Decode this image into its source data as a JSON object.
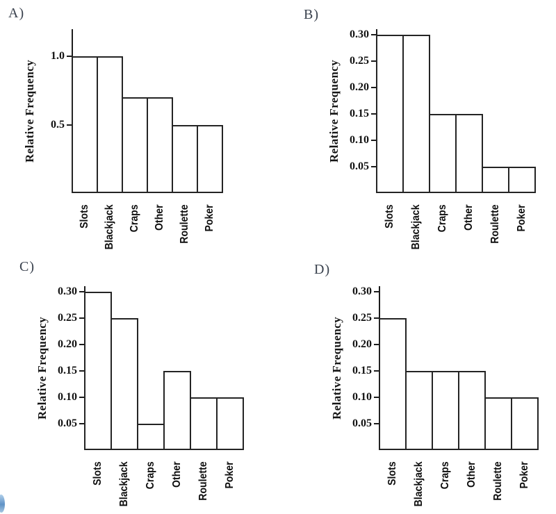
{
  "page": {
    "background": "#ffffff",
    "description_colors": {
      "ink": "#1c1c1c",
      "panel_label": "#39414d",
      "bar_fill": "#ffffff",
      "artifact_blue": "#4e86c0"
    }
  },
  "chart_data": [
    {
      "id": "A",
      "option_label": "A)",
      "type": "bar",
      "title": "",
      "xlabel": "",
      "ylabel": "Relative Frequency",
      "categories": [
        "Slots",
        "Blackjack",
        "Craps",
        "Other",
        "Roulette",
        "Poker"
      ],
      "values": [
        1.0,
        1.0,
        0.7,
        0.7,
        0.5,
        0.5
      ],
      "yticks": [
        {
          "value": 0.5,
          "label": "0.5"
        },
        {
          "value": 1.0,
          "label": "1.0"
        }
      ],
      "ylim": [
        0,
        1.2
      ],
      "grid": false,
      "legend": "none"
    },
    {
      "id": "B",
      "option_label": "B)",
      "type": "bar",
      "title": "",
      "xlabel": "",
      "ylabel": "Relative Frequency",
      "categories": [
        "Slots",
        "Blackjack",
        "Craps",
        "Other",
        "Roulette",
        "Poker"
      ],
      "values": [
        0.3,
        0.3,
        0.15,
        0.15,
        0.05,
        0.05
      ],
      "yticks": [
        {
          "value": 0.05,
          "label": "0.05"
        },
        {
          "value": 0.1,
          "label": "0.10"
        },
        {
          "value": 0.15,
          "label": "0.15"
        },
        {
          "value": 0.2,
          "label": "0.20"
        },
        {
          "value": 0.25,
          "label": "0.25"
        },
        {
          "value": 0.3,
          "label": "0.30"
        }
      ],
      "ylim": [
        0,
        0.31
      ],
      "grid": false,
      "legend": "none"
    },
    {
      "id": "C",
      "option_label": "C)",
      "type": "bar",
      "title": "",
      "xlabel": "",
      "ylabel": "Relative Frequency",
      "categories": [
        "Slots",
        "Blackjack",
        "Craps",
        "Other",
        "Roulette",
        "Poker"
      ],
      "values": [
        0.3,
        0.25,
        0.05,
        0.15,
        0.1,
        0.1
      ],
      "yticks": [
        {
          "value": 0.05,
          "label": "0.05"
        },
        {
          "value": 0.1,
          "label": "0.10"
        },
        {
          "value": 0.15,
          "label": "0.15"
        },
        {
          "value": 0.2,
          "label": "0.20"
        },
        {
          "value": 0.25,
          "label": "0.25"
        },
        {
          "value": 0.3,
          "label": "0.30"
        }
      ],
      "ylim": [
        0,
        0.31
      ],
      "grid": false,
      "legend": "none"
    },
    {
      "id": "D",
      "option_label": "D)",
      "type": "bar",
      "title": "",
      "xlabel": "",
      "ylabel": "Relative Frequency",
      "categories": [
        "Slots",
        "Blackjack",
        "Craps",
        "Other",
        "Roulette",
        "Poker"
      ],
      "values": [
        0.25,
        0.15,
        0.15,
        0.15,
        0.1,
        0.1
      ],
      "yticks": [
        {
          "value": 0.05,
          "label": "0.05"
        },
        {
          "value": 0.1,
          "label": "0.10"
        },
        {
          "value": 0.15,
          "label": "0.15"
        },
        {
          "value": 0.2,
          "label": "0.20"
        },
        {
          "value": 0.25,
          "label": "0.25"
        },
        {
          "value": 0.3,
          "label": "0.30"
        }
      ],
      "ylim": [
        0,
        0.31
      ],
      "grid": false,
      "legend": "none"
    }
  ]
}
